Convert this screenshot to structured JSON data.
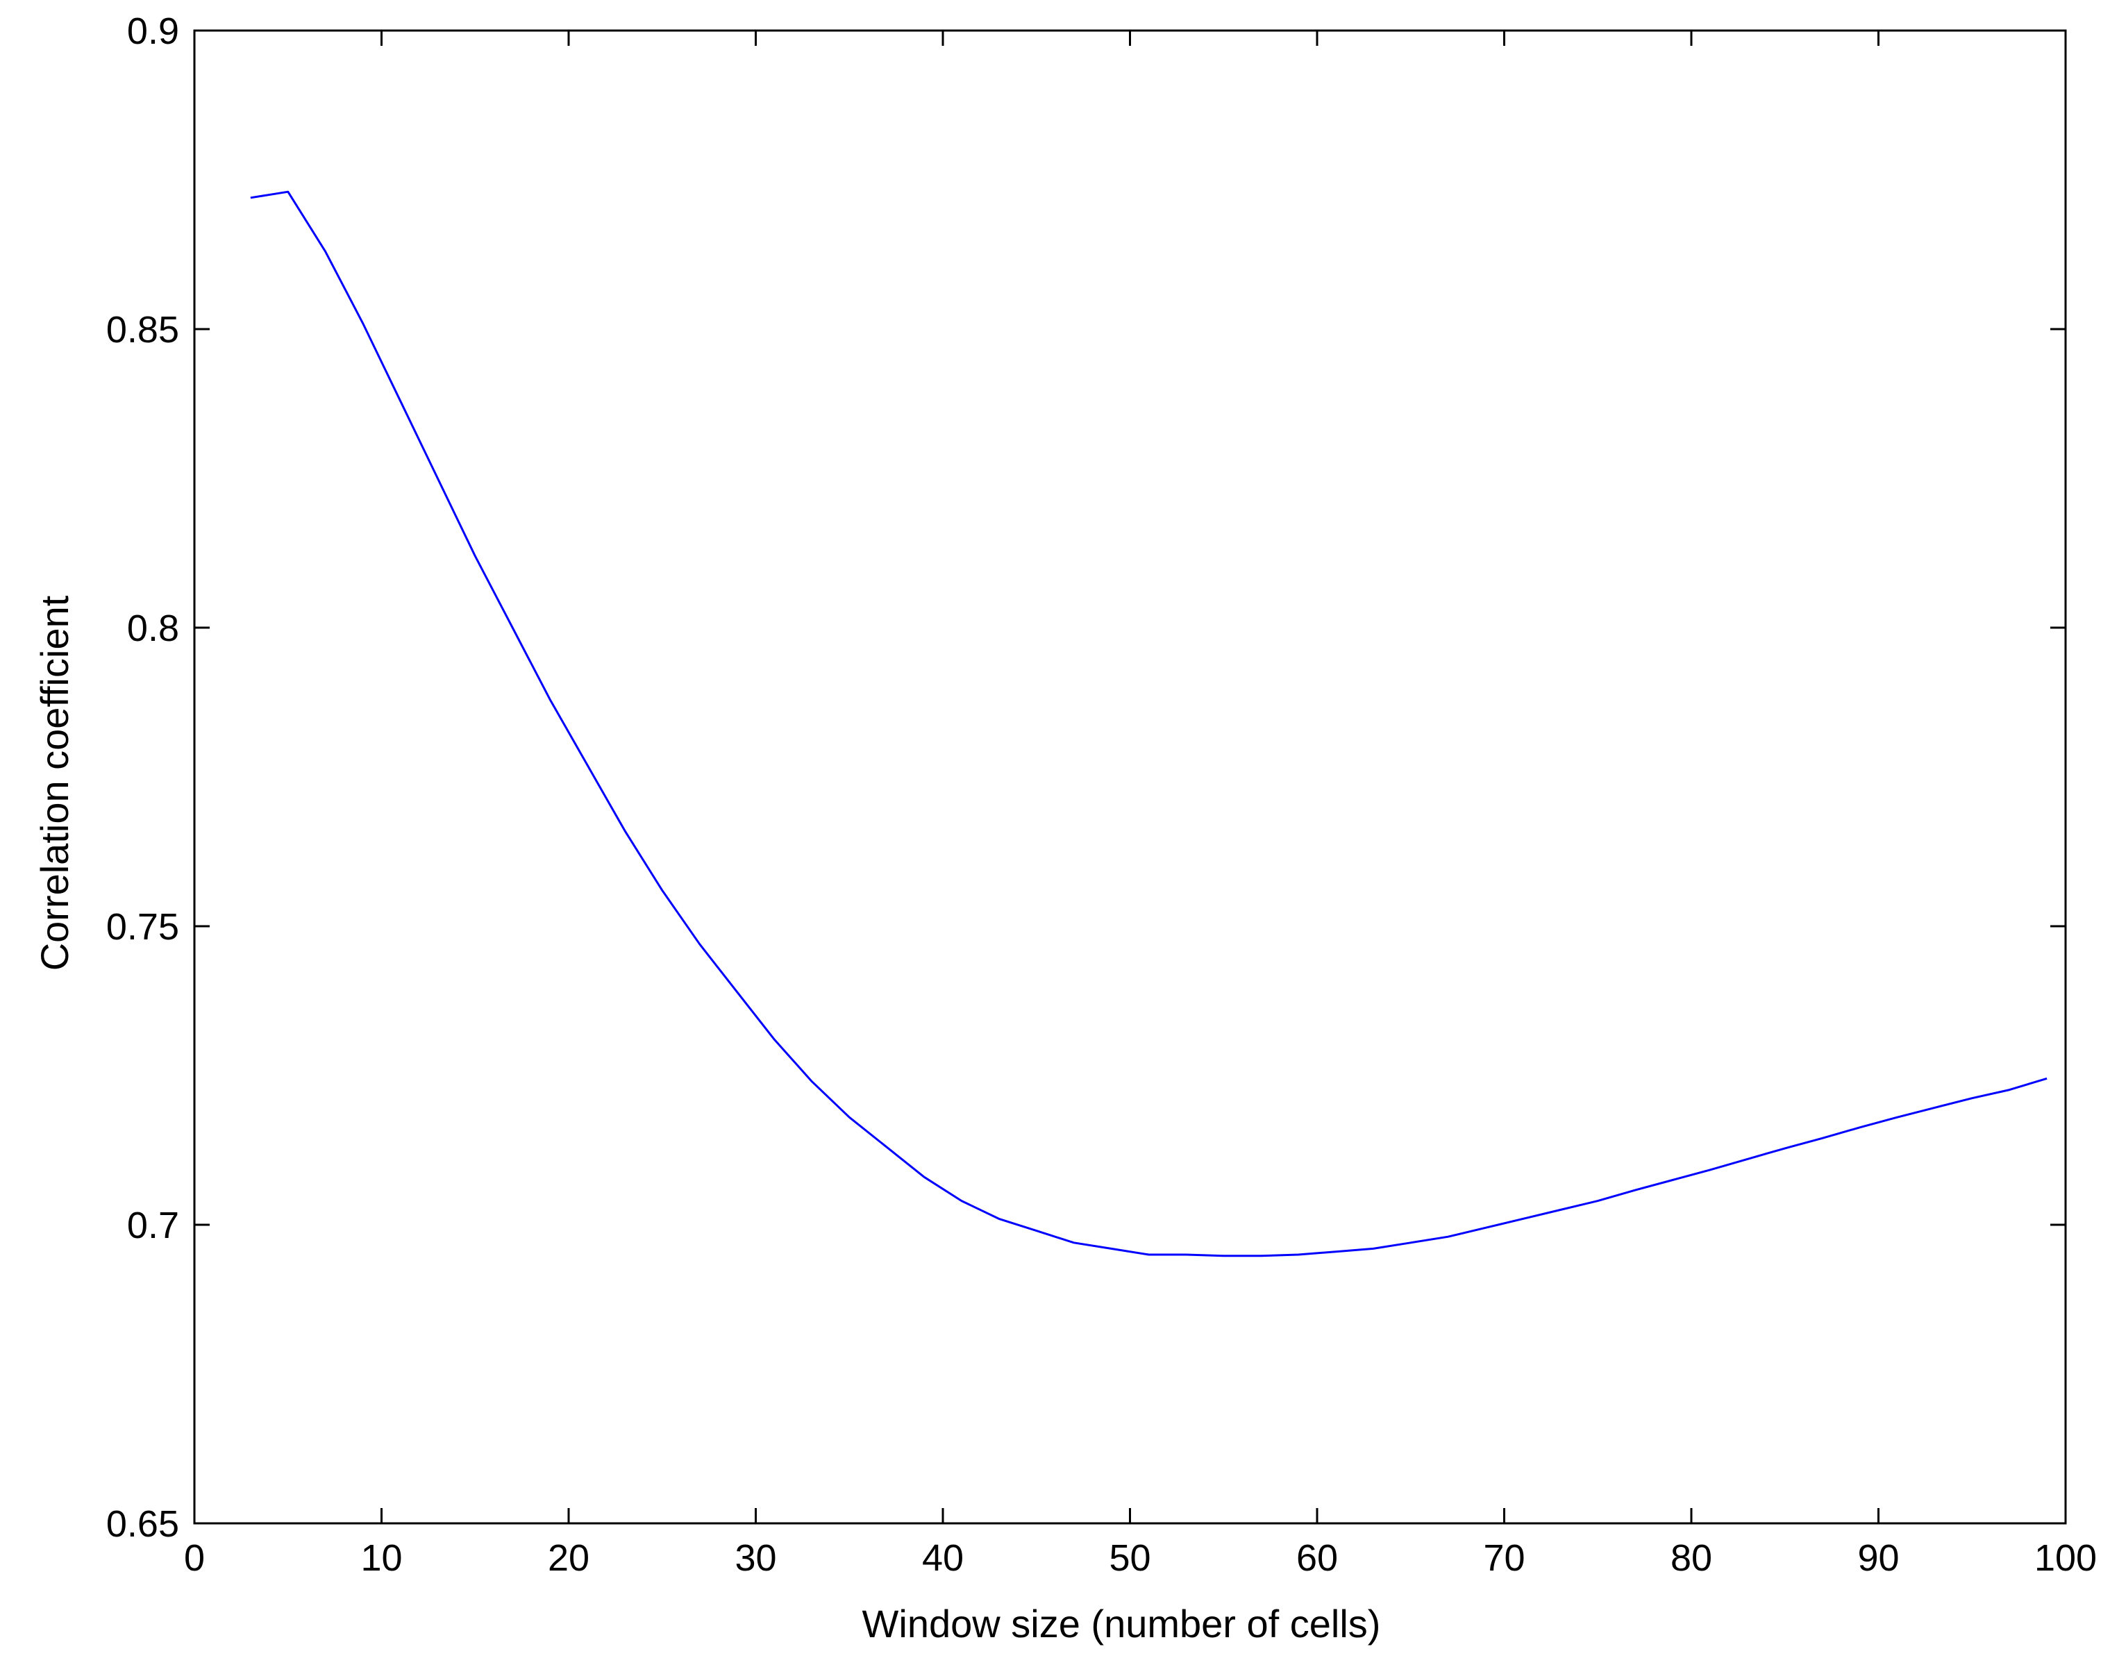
{
  "chart_data": {
    "type": "line",
    "title": "",
    "xlabel": "Window size (number of cells)",
    "ylabel": "Correlation coefficient",
    "xlim": [
      0,
      100
    ],
    "ylim": [
      0.65,
      0.9
    ],
    "xticks": [
      0,
      10,
      20,
      30,
      40,
      50,
      60,
      70,
      80,
      90,
      100
    ],
    "xtick_labels": [
      "0",
      "10",
      "20",
      "30",
      "40",
      "50",
      "60",
      "70",
      "80",
      "90",
      "100"
    ],
    "yticks": [
      0.65,
      0.7,
      0.75,
      0.8,
      0.85,
      0.9
    ],
    "ytick_labels": [
      "0.65",
      "0.7",
      "0.75",
      "0.8",
      "0.85",
      "0.9"
    ],
    "grid": false,
    "series": [
      {
        "color": "#0000ff",
        "x": [
          3,
          5,
          7,
          9,
          11,
          13,
          15,
          17,
          19,
          21,
          23,
          25,
          27,
          29,
          31,
          33,
          35,
          37,
          39,
          41,
          43,
          45,
          47,
          49,
          51,
          53,
          55,
          57,
          59,
          61,
          63,
          65,
          67,
          69,
          71,
          73,
          75,
          77,
          79,
          81,
          83,
          85,
          87,
          89,
          91,
          93,
          95,
          97,
          99
        ],
        "y": [
          0.872,
          0.873,
          0.863,
          0.851,
          0.838,
          0.825,
          0.812,
          0.8,
          0.788,
          0.777,
          0.766,
          0.756,
          0.747,
          0.739,
          0.731,
          0.724,
          0.718,
          0.713,
          0.708,
          0.704,
          0.701,
          0.699,
          0.697,
          0.696,
          0.695,
          0.695,
          0.6948,
          0.6948,
          0.695,
          0.6955,
          0.696,
          0.697,
          0.698,
          0.6995,
          0.701,
          0.7025,
          0.704,
          0.7058,
          0.7075,
          0.7092,
          0.711,
          0.7128,
          0.7145,
          0.7163,
          0.718,
          0.7196,
          0.7212,
          0.7226,
          0.7245
        ]
      }
    ]
  }
}
